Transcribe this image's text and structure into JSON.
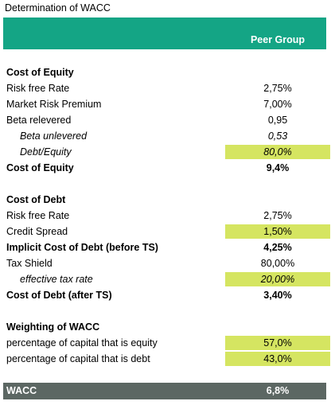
{
  "title": "Determination of WACC",
  "header": {
    "column": "Peer Group"
  },
  "colors": {
    "header_green": "#14a585",
    "highlight": "#d5e561",
    "footer_gray": "#5c6763"
  },
  "cost_of_equity": {
    "heading": "Cost of Equity",
    "risk_free_rate": {
      "label": "Risk free Rate",
      "value": "2,75%"
    },
    "market_risk_premium": {
      "label": "Market Risk Premium",
      "value": "7,00%"
    },
    "beta_relevered": {
      "label": "Beta relevered",
      "value": "0,95"
    },
    "beta_unlevered": {
      "label": "Beta unlevered",
      "value": "0,53"
    },
    "debt_equity": {
      "label": "Debt/Equity",
      "value": "80,0%"
    },
    "total": {
      "label": "Cost of Equity",
      "value": "9,4%"
    }
  },
  "cost_of_debt": {
    "heading": "Cost of Debt",
    "risk_free_rate": {
      "label": "Risk free Rate",
      "value": "2,75%"
    },
    "credit_spread": {
      "label": "Credit Spread",
      "value": "1,50%"
    },
    "implicit_cost": {
      "label": "Implicit Cost of Debt (before TS)",
      "value": "4,25%"
    },
    "tax_shield": {
      "label": "Tax Shield",
      "value": "80,00%"
    },
    "effective_tax_rate": {
      "label": "effective tax rate",
      "value": "20,00%"
    },
    "after_ts": {
      "label": "Cost of Debt (after TS)",
      "value": "3,40%"
    }
  },
  "weighting": {
    "heading": "Weighting of WACC",
    "equity_share": {
      "label": "percentage of capital that is equity",
      "value": "57,0%"
    },
    "debt_share": {
      "label": "percentage of capital that is debt",
      "value": "43,0%"
    }
  },
  "wacc": {
    "label": "WACC",
    "value": "6,8%"
  }
}
